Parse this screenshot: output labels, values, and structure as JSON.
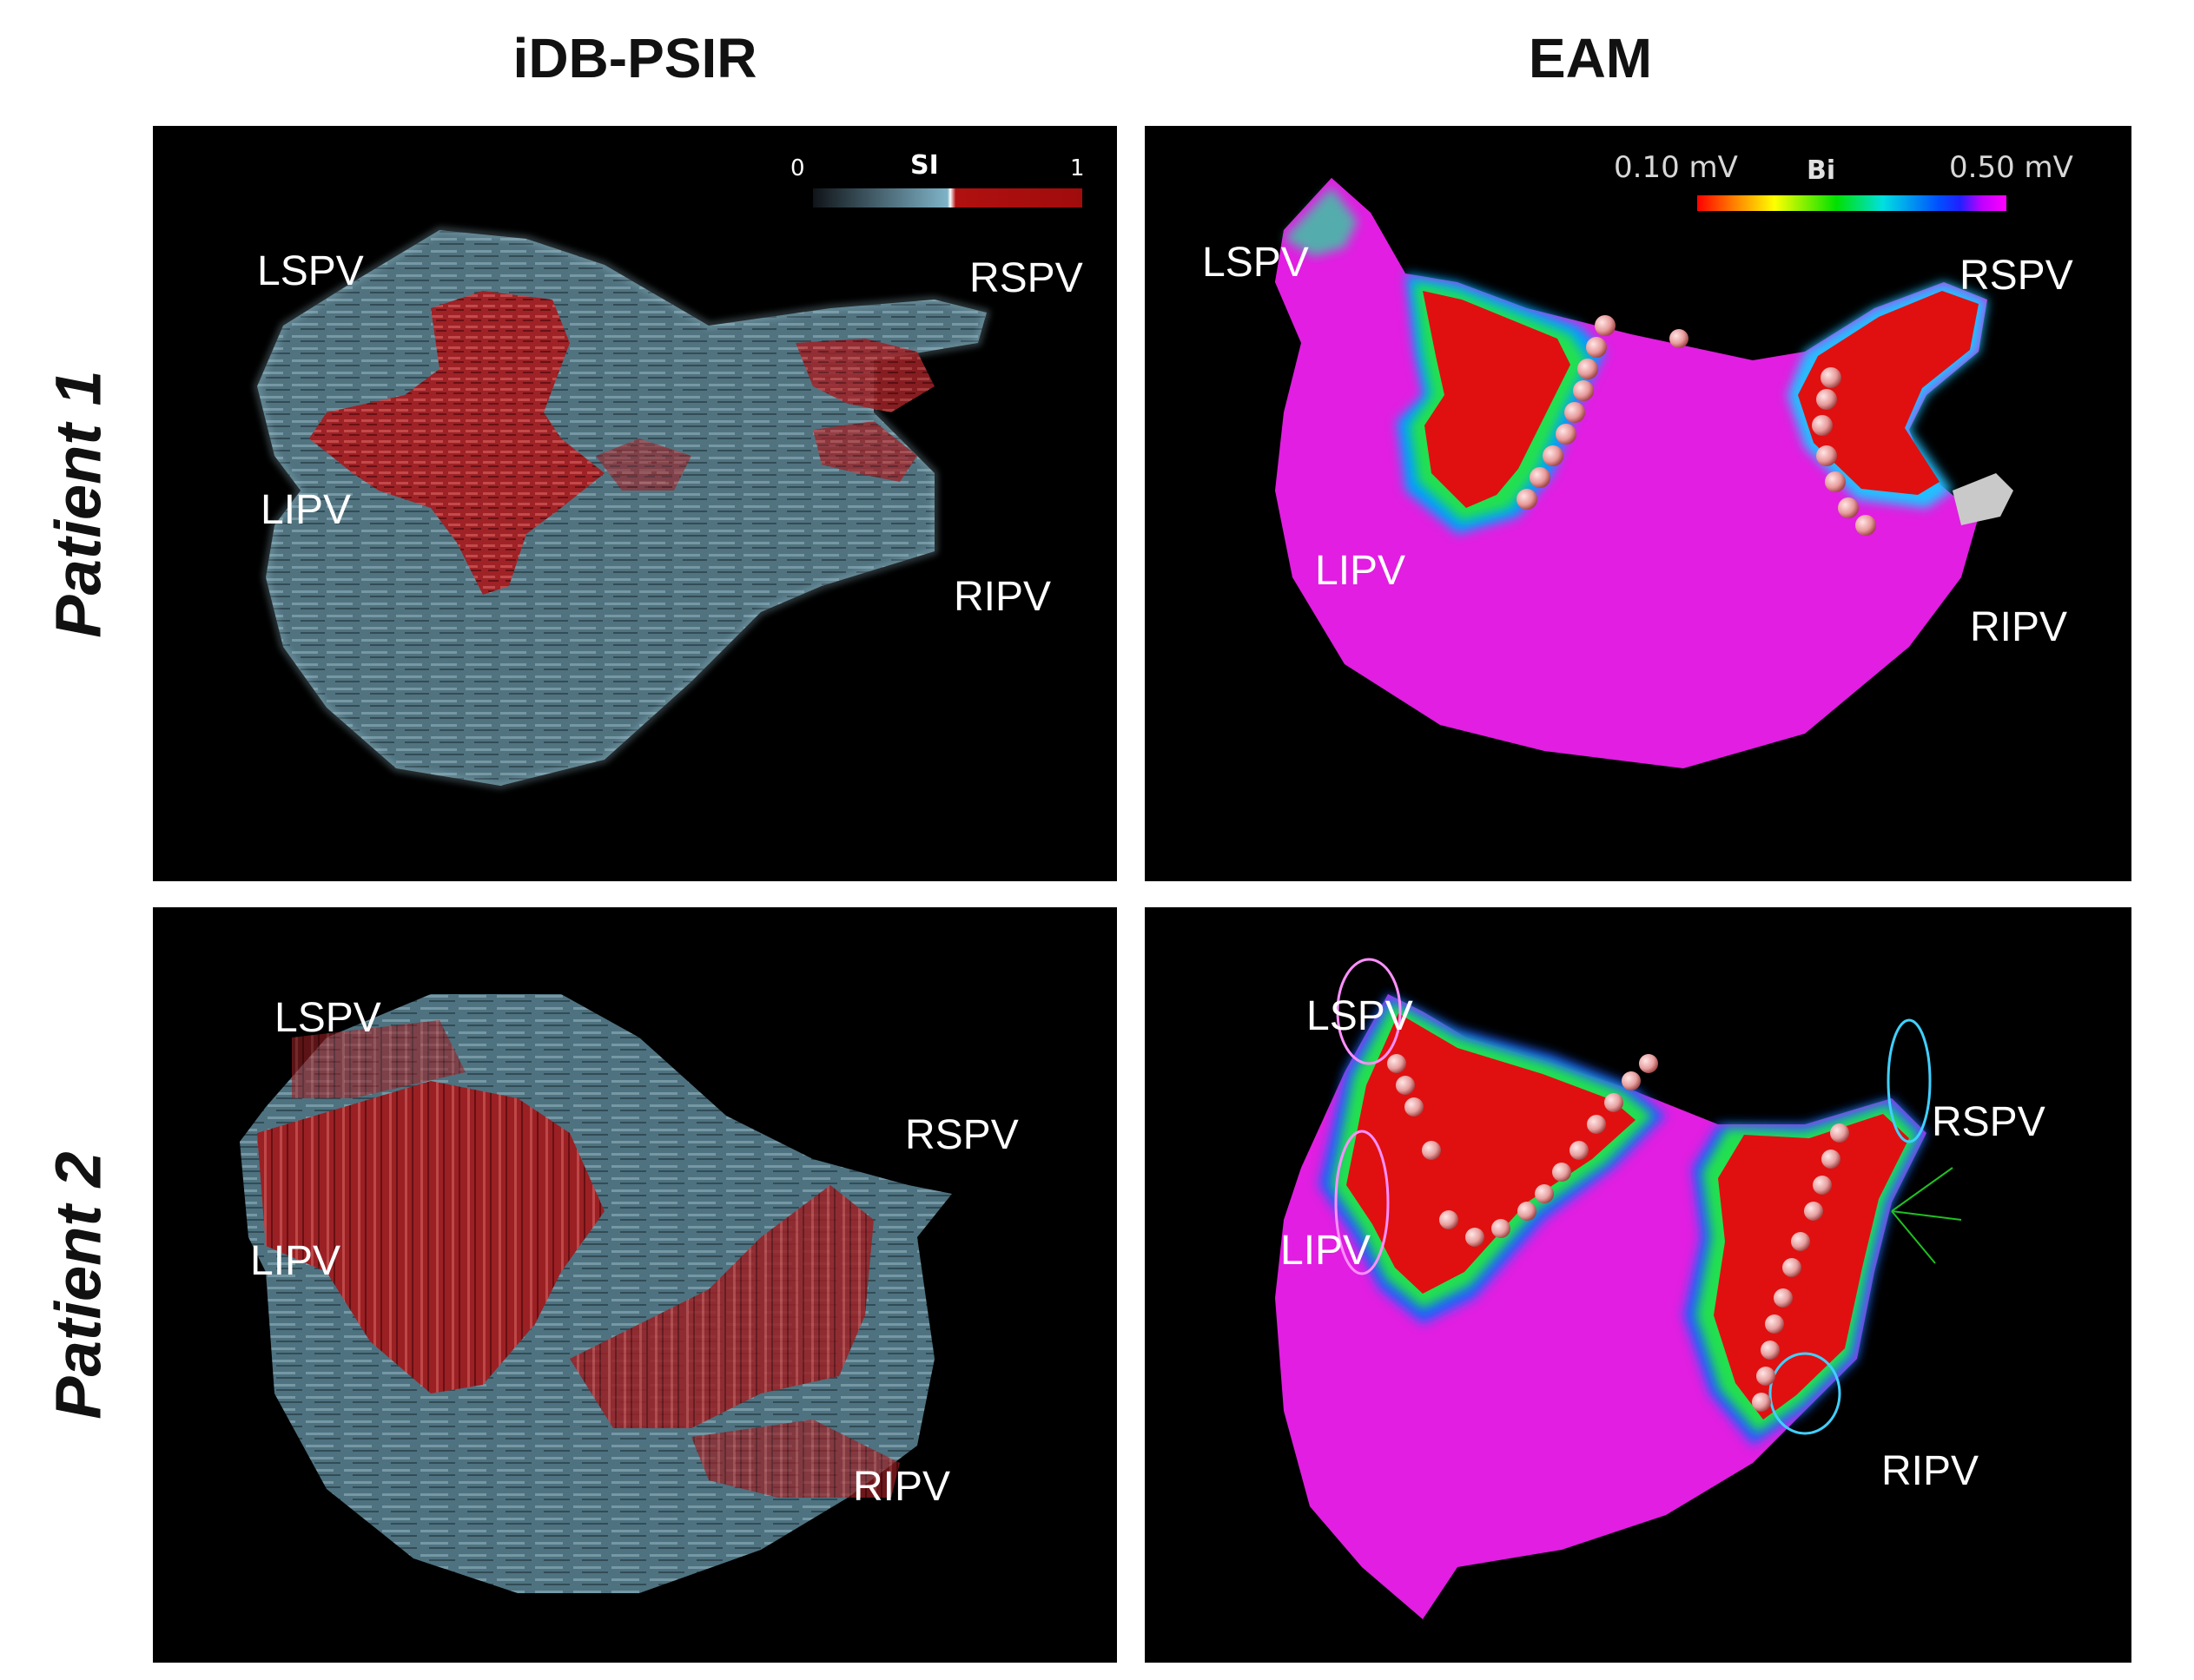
{
  "columns": [
    "iDB-PSIR",
    "EAM"
  ],
  "rows": [
    "Patient 1",
    "Patient 2"
  ],
  "panels": {
    "p1_psir": {
      "colorbar": {
        "min": "0",
        "label": "SI",
        "max": "1"
      },
      "labels": {
        "lspv": "LSPV",
        "rspv": "RSPV",
        "lipv": "LIPV",
        "ripv": "RIPV"
      }
    },
    "p1_eam": {
      "colorbar": {
        "min": "0.10 mV",
        "label": "Bi",
        "max": "0.50 mV"
      },
      "labels": {
        "lspv": "LSPV",
        "rspv": "RSPV",
        "lipv": "LIPV",
        "ripv": "RIPV"
      }
    },
    "p2_psir": {
      "labels": {
        "lspv": "LSPV",
        "rspv": "RSPV",
        "lipv": "LIPV",
        "ripv": "RIPV"
      }
    },
    "p2_eam": {
      "labels": {
        "lspv": "LSPV",
        "rspv": "RSPV",
        "lipv": "LIPV",
        "ripv": "RIPV"
      }
    }
  },
  "colors": {
    "tissue_blue": "#6f98a8",
    "scar_red": "#a8282c",
    "voltage_magenta": "#e01ee0",
    "voltage_red": "#e01010",
    "panel_bg": "#000000"
  }
}
